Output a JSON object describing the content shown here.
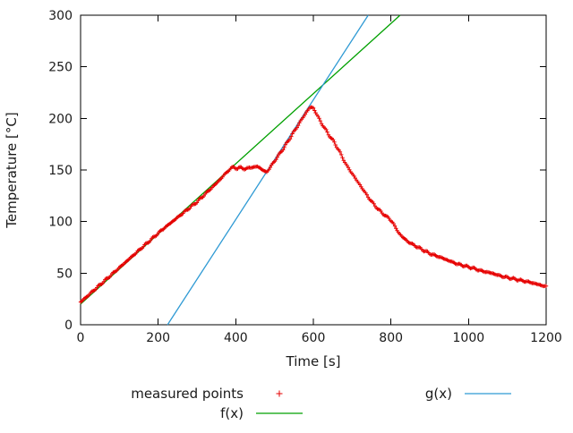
{
  "chart_data": {
    "type": "scatter",
    "title": "",
    "xlabel": "Time [s]",
    "ylabel": "Temperature [°C]",
    "axes": {
      "x": {
        "label": "Time [s]",
        "min": 0,
        "max": 1200,
        "ticks": [
          0,
          200,
          400,
          600,
          800,
          1000,
          1200
        ]
      },
      "y": {
        "label": "Temperature [°C]",
        "min": 0,
        "max": 300,
        "ticks": [
          0,
          50,
          100,
          150,
          200,
          250,
          300
        ]
      }
    },
    "grid": false,
    "legend_position": "below",
    "series": [
      {
        "name": "measured points",
        "type": "points",
        "marker": "plus",
        "color": "#e60000",
        "points": [
          [
            0,
            22
          ],
          [
            30,
            32
          ],
          [
            60,
            42
          ],
          [
            90,
            52
          ],
          [
            120,
            62
          ],
          [
            150,
            72
          ],
          [
            180,
            82
          ],
          [
            210,
            92
          ],
          [
            240,
            101
          ],
          [
            270,
            110
          ],
          [
            300,
            119
          ],
          [
            325,
            128
          ],
          [
            350,
            137
          ],
          [
            370,
            145
          ],
          [
            385,
            151
          ],
          [
            395,
            153
          ],
          [
            405,
            151
          ],
          [
            415,
            153
          ],
          [
            425,
            150
          ],
          [
            435,
            153
          ],
          [
            445,
            152
          ],
          [
            455,
            154
          ],
          [
            465,
            151
          ],
          [
            473,
            149
          ],
          [
            480,
            148
          ],
          [
            488,
            152
          ],
          [
            495,
            156
          ],
          [
            510,
            164
          ],
          [
            525,
            172
          ],
          [
            540,
            181
          ],
          [
            555,
            190
          ],
          [
            570,
            199
          ],
          [
            582,
            206
          ],
          [
            592,
            211
          ],
          [
            600,
            210
          ],
          [
            610,
            203
          ],
          [
            620,
            196
          ],
          [
            630,
            190
          ],
          [
            640,
            184
          ],
          [
            650,
            179
          ],
          [
            658,
            174
          ],
          [
            666,
            169
          ],
          [
            675,
            162
          ],
          [
            685,
            155
          ],
          [
            695,
            149
          ],
          [
            705,
            144
          ],
          [
            715,
            138
          ],
          [
            725,
            133
          ],
          [
            735,
            127
          ],
          [
            745,
            122
          ],
          [
            755,
            117
          ],
          [
            765,
            113
          ],
          [
            775,
            109
          ],
          [
            785,
            106
          ],
          [
            795,
            103
          ],
          [
            805,
            99
          ],
          [
            812,
            94
          ],
          [
            820,
            89
          ],
          [
            830,
            85
          ],
          [
            842,
            81
          ],
          [
            855,
            78
          ],
          [
            870,
            75
          ],
          [
            885,
            72
          ],
          [
            900,
            69
          ],
          [
            915,
            67
          ],
          [
            930,
            65
          ],
          [
            950,
            62
          ],
          [
            970,
            59
          ],
          [
            990,
            57
          ],
          [
            1010,
            55
          ],
          [
            1035,
            52
          ],
          [
            1060,
            50
          ],
          [
            1085,
            47
          ],
          [
            1110,
            45
          ],
          [
            1135,
            43
          ],
          [
            1160,
            41
          ],
          [
            1180,
            39
          ],
          [
            1200,
            37
          ]
        ]
      },
      {
        "name": "f(x)",
        "type": "line",
        "color": "#00a000",
        "fn": {
          "slope": 0.34,
          "intercept": 20
        }
      },
      {
        "name": "g(x)",
        "type": "line",
        "color": "#2f9ad4",
        "fn": {
          "slope": 0.58,
          "intercept": -130
        }
      }
    ]
  },
  "legend": {
    "measured_label": "measured points",
    "f_label": "f(x)",
    "g_label": "g(x)"
  }
}
